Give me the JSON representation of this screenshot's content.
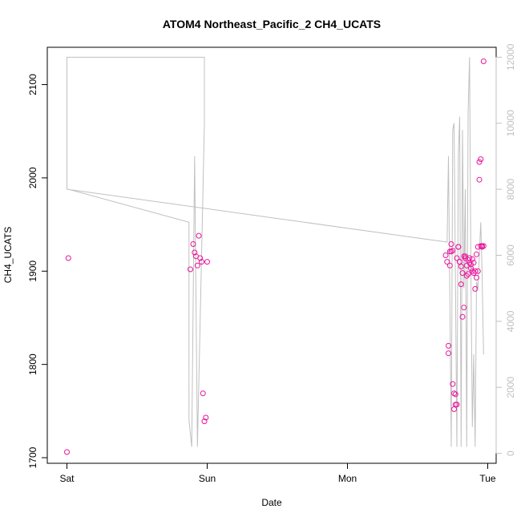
{
  "chart_data": {
    "type": "scatter",
    "title": "ATOM4 Northeast_Pacific_2 CH4_UCATS",
    "xlabel": "Date",
    "ylabel": "CH4_UCATS",
    "x_ticks": [
      "Sat",
      "Sun",
      "Mon",
      "Tue"
    ],
    "xlim_days": [
      -0.14,
      3.06
    ],
    "ylim": [
      1694,
      2140
    ],
    "y_ticks": [
      1700,
      1800,
      1900,
      2000,
      2100
    ],
    "y2lim": [
      -300,
      12300
    ],
    "y2_ticks": [
      0,
      2000,
      4000,
      6000,
      8000,
      10000,
      12000
    ],
    "colors": {
      "points": "#e8169b",
      "altitude_line": "#c0c0c0",
      "right_axis": "#c0c0c0"
    },
    "series": [
      {
        "kind": "points",
        "x_days": [
          0.01,
          0.0,
          0.88,
          0.9,
          0.91,
          0.92,
          0.93,
          0.94,
          0.95,
          0.96,
          0.97,
          0.98,
          0.99,
          1.0,
          2.7,
          2.71,
          2.72,
          2.72,
          2.73,
          2.73,
          2.74,
          2.74,
          2.75,
          2.75,
          2.76,
          2.76,
          2.77,
          2.77,
          2.78,
          2.78,
          2.79,
          2.79,
          2.8,
          2.8,
          2.81,
          2.81,
          2.82,
          2.82,
          2.83,
          2.83,
          2.84,
          2.84,
          2.85,
          2.85,
          2.86,
          2.86,
          2.87,
          2.87,
          2.88,
          2.88,
          2.89,
          2.89,
          2.9,
          2.9,
          2.91,
          2.91,
          2.92,
          2.92,
          2.93,
          2.93,
          2.94,
          2.94,
          2.95,
          2.95,
          2.96,
          2.96,
          2.97,
          2.97
        ],
        "y": [
          1914,
          1706,
          1902,
          1929,
          1920,
          1916,
          1906,
          1938,
          1914,
          1910,
          1769,
          1739,
          1743,
          1910,
          1917,
          1910,
          1820,
          1812,
          1906,
          1921,
          1929,
          1921,
          1922,
          1779,
          1769,
          1752,
          1757,
          1768,
          1757,
          1914,
          1926,
          1926,
          1910,
          1910,
          1905,
          1886,
          1898,
          1851,
          1861,
          1916,
          1914,
          1916,
          1906,
          1895,
          1897,
          1912,
          1909,
          1914,
          1903,
          1907,
          1913,
          1900,
          1898,
          1909,
          1900,
          1881,
          1893,
          1918,
          1900,
          1926,
          1998,
          2017,
          2020,
          1927,
          1926,
          1927,
          2125,
          1927
        ]
      },
      {
        "kind": "line",
        "name": "altitude",
        "x_days": [
          0.0,
          0.0,
          0.95,
          0.98,
          0.98,
          0.96,
          0.93,
          0.91,
          0.89,
          0.87,
          0.87,
          0.01,
          0.0,
          2.71,
          2.72,
          2.74,
          2.75,
          2.76,
          2.77,
          2.78,
          2.79,
          2.8,
          2.81,
          2.82,
          2.83,
          2.84,
          2.85,
          2.86,
          2.87,
          2.88,
          2.89,
          2.9,
          2.91,
          2.92,
          2.93,
          2.94,
          2.95,
          2.96,
          2.97
        ],
        "y2": [
          8000,
          12000,
          12000,
          12000,
          10000,
          6000,
          200,
          9000,
          200,
          1000,
          7000,
          8000,
          8000,
          6400,
          9000,
          200,
          9800,
          10000,
          5000,
          200,
          9000,
          10200,
          200,
          9800,
          5000,
          8000,
          200,
          10300,
          12000,
          5500,
          800,
          3000,
          200,
          5200,
          5000,
          6000,
          7000,
          5400,
          3000
        ]
      }
    ]
  }
}
